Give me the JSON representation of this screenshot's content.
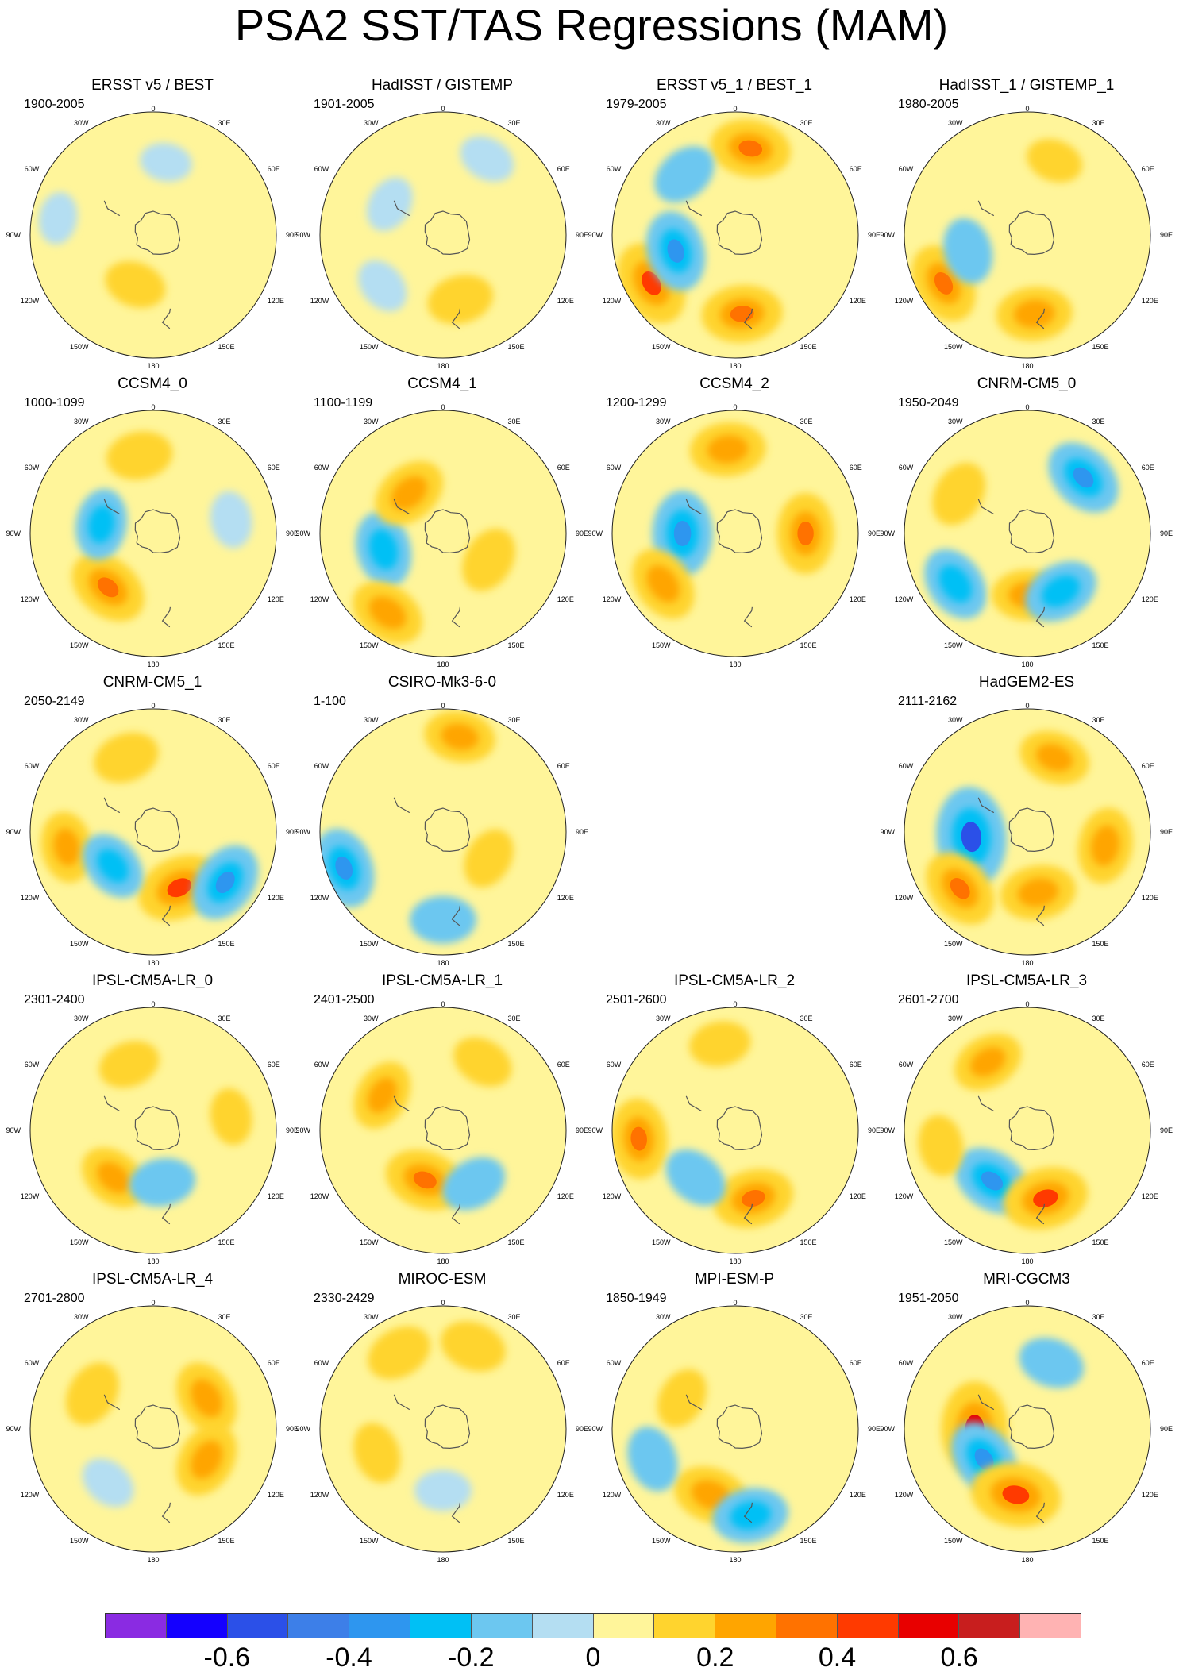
{
  "title": "PSA2 SST/TAS Regressions (MAM)",
  "lon_labels": [
    "0",
    "30E",
    "60E",
    "90E",
    "120E",
    "150E",
    "180",
    "150W",
    "120W",
    "90W",
    "60W",
    "30W"
  ],
  "colorbar": {
    "colors": [
      "#8a2be2",
      "#1400ff",
      "#2b50e8",
      "#3d7fe8",
      "#2e96ef",
      "#00c0f5",
      "#6cc7f0",
      "#b4def2",
      "#fff59a",
      "#ffd42e",
      "#ffa500",
      "#ff7200",
      "#ff3a00",
      "#e80000",
      "#c81e1e",
      "#ffb3b3"
    ],
    "tick_labels": [
      "-0.6",
      "-0.4",
      "-0.2",
      "0",
      "0.2",
      "0.4",
      "0.6"
    ],
    "tick_values": [
      -0.6,
      -0.4,
      -0.2,
      0,
      0.2,
      0.4,
      0.6
    ],
    "range": [
      -0.8,
      0.8
    ]
  },
  "panels": [
    {
      "id": "ersst-best",
      "title": "ERSST v5 / BEST",
      "period": "1900-2005",
      "anomalies": [
        {
          "lon": 200,
          "lat": -60,
          "value": 0.15
        },
        {
          "lon": 10,
          "lat": -48,
          "value": -0.05
        },
        {
          "lon": 280,
          "lat": -35,
          "value": -0.05
        }
      ]
    },
    {
      "id": "hadisst-gistemp",
      "title": "HadISST / GISTEMP",
      "period": "1901-2005",
      "anomalies": [
        {
          "lon": 300,
          "lat": -55,
          "value": -0.1
        },
        {
          "lon": 165,
          "lat": -52,
          "value": 0.2
        },
        {
          "lon": 230,
          "lat": -45,
          "value": -0.1
        },
        {
          "lon": 30,
          "lat": -40,
          "value": -0.1
        }
      ]
    },
    {
      "id": "ersst-best-1",
      "title": "ERSST v5_1 / BEST_1",
      "period": "1979-2005",
      "anomalies": [
        {
          "lon": 10,
          "lat": -40,
          "value": 0.35
        },
        {
          "lon": 240,
          "lat": -35,
          "value": 0.4
        },
        {
          "lon": 255,
          "lat": -55,
          "value": -0.35
        },
        {
          "lon": 175,
          "lat": -45,
          "value": 0.35
        },
        {
          "lon": 320,
          "lat": -45,
          "value": -0.2
        }
      ]
    },
    {
      "id": "hadisst-gistemp-1",
      "title": "HadISST_1 / GISTEMP_1",
      "period": "1980-2005",
      "anomalies": [
        {
          "lon": 240,
          "lat": -35,
          "value": 0.35
        },
        {
          "lon": 175,
          "lat": -45,
          "value": 0.3
        },
        {
          "lon": 255,
          "lat": -55,
          "value": -0.2
        },
        {
          "lon": 20,
          "lat": -45,
          "value": 0.1
        }
      ]
    },
    {
      "id": "ccsm4-0",
      "title": "CCSM4_0",
      "period": "1000-1099",
      "anomalies": [
        {
          "lon": 220,
          "lat": -50,
          "value": 0.35
        },
        {
          "lon": 350,
          "lat": -45,
          "value": 0.2
        },
        {
          "lon": 280,
          "lat": -60,
          "value": -0.25
        },
        {
          "lon": 80,
          "lat": -45,
          "value": -0.1
        }
      ]
    },
    {
      "id": "ccsm4-1",
      "title": "CCSM4_1",
      "period": "1100-1199",
      "anomalies": [
        {
          "lon": 255,
          "lat": -55,
          "value": -0.3
        },
        {
          "lon": 215,
          "lat": -35,
          "value": 0.3
        },
        {
          "lon": 320,
          "lat": -60,
          "value": 0.3
        },
        {
          "lon": 120,
          "lat": -60,
          "value": 0.2
        }
      ]
    },
    {
      "id": "ccsm4-2",
      "title": "CCSM4_2",
      "period": "1200-1299",
      "anomalies": [
        {
          "lon": 270,
          "lat": -60,
          "value": -0.4
        },
        {
          "lon": 235,
          "lat": -40,
          "value": 0.3
        },
        {
          "lon": 355,
          "lat": -42,
          "value": 0.3
        },
        {
          "lon": 90,
          "lat": -50,
          "value": 0.35
        }
      ]
    },
    {
      "id": "cnrm-cm5-0",
      "title": "CNRM-CM5_0",
      "period": "1950-2049",
      "anomalies": [
        {
          "lon": 45,
          "lat": -45,
          "value": -0.35
        },
        {
          "lon": 235,
          "lat": -40,
          "value": -0.3
        },
        {
          "lon": 180,
          "lat": -55,
          "value": 0.25
        },
        {
          "lon": 150,
          "lat": -52,
          "value": -0.3
        },
        {
          "lon": 300,
          "lat": -45,
          "value": 0.2
        }
      ]
    },
    {
      "id": "cnrm-cm5-1",
      "title": "CNRM-CM5_1",
      "period": "2050-2149",
      "anomalies": [
        {
          "lon": 155,
          "lat": -55,
          "value": 0.4
        },
        {
          "lon": 125,
          "lat": -40,
          "value": -0.35
        },
        {
          "lon": 260,
          "lat": -40,
          "value": 0.25
        },
        {
          "lon": 230,
          "lat": -60,
          "value": -0.25
        },
        {
          "lon": 340,
          "lat": -45,
          "value": 0.2
        }
      ]
    },
    {
      "id": "csiro-mk3-6-0",
      "title": "CSIRO-Mk3-6-0",
      "period": "1-100",
      "anomalies": [
        {
          "lon": 250,
          "lat": -30,
          "value": -0.35
        },
        {
          "lon": 10,
          "lat": -35,
          "value": 0.25
        },
        {
          "lon": 180,
          "lat": -40,
          "value": -0.2
        },
        {
          "lon": 120,
          "lat": -60,
          "value": 0.15
        }
      ]
    },
    {
      "id": "hadgem2-es",
      "title": "HadGEM2-ES",
      "period": "2111-2162",
      "anomalies": [
        {
          "lon": 265,
          "lat": -58,
          "value": -0.55
        },
        {
          "lon": 230,
          "lat": -40,
          "value": 0.35
        },
        {
          "lon": 100,
          "lat": -45,
          "value": 0.3
        },
        {
          "lon": 20,
          "lat": -45,
          "value": 0.25
        },
        {
          "lon": 170,
          "lat": -55,
          "value": 0.3
        }
      ]
    },
    {
      "id": "ipsl-cm5a-lr-0",
      "title": "IPSL-CM5A-LR_0",
      "period": "2301-2400",
      "anomalies": [
        {
          "lon": 220,
          "lat": -55,
          "value": 0.25
        },
        {
          "lon": 170,
          "lat": -60,
          "value": -0.2
        },
        {
          "lon": 340,
          "lat": -50,
          "value": 0.15
        },
        {
          "lon": 80,
          "lat": -45,
          "value": 0.1
        }
      ]
    },
    {
      "id": "ipsl-cm5a-lr-1",
      "title": "IPSL-CM5A-LR_1",
      "period": "2401-2500",
      "anomalies": [
        {
          "lon": 200,
          "lat": -60,
          "value": 0.35
        },
        {
          "lon": 300,
          "lat": -50,
          "value": 0.25
        },
        {
          "lon": 150,
          "lat": -55,
          "value": -0.2
        },
        {
          "lon": 30,
          "lat": -45,
          "value": 0.15
        }
      ]
    },
    {
      "id": "ipsl-cm5a-lr-2",
      "title": "IPSL-CM5A-LR_2",
      "period": "2501-2600",
      "anomalies": [
        {
          "lon": 265,
          "lat": -35,
          "value": 0.35
        },
        {
          "lon": 165,
          "lat": -50,
          "value": 0.35
        },
        {
          "lon": 220,
          "lat": -55,
          "value": -0.2
        },
        {
          "lon": 350,
          "lat": -40,
          "value": 0.15
        }
      ]
    },
    {
      "id": "ipsl-cm5a-lr-3",
      "title": "IPSL-CM5A-LR_3",
      "period": "2601-2700",
      "anomalies": [
        {
          "lon": 215,
          "lat": -55,
          "value": -0.35
        },
        {
          "lon": 165,
          "lat": -50,
          "value": 0.4
        },
        {
          "lon": 330,
          "lat": -45,
          "value": 0.25
        },
        {
          "lon": 260,
          "lat": -40,
          "value": 0.15
        }
      ]
    },
    {
      "id": "ipsl-cm5a-lr-4",
      "title": "IPSL-CM5A-LR_4",
      "period": "2701-2800",
      "anomalies": [
        {
          "lon": 60,
          "lat": -55,
          "value": 0.3
        },
        {
          "lon": 120,
          "lat": -55,
          "value": 0.3
        },
        {
          "lon": 300,
          "lat": -50,
          "value": 0.2
        },
        {
          "lon": 220,
          "lat": -50,
          "value": -0.1
        }
      ]
    },
    {
      "id": "miroc-esm",
      "title": "MIROC-ESM",
      "period": "2330-2429",
      "anomalies": [
        {
          "lon": 330,
          "lat": -40,
          "value": 0.2
        },
        {
          "lon": 20,
          "lat": -40,
          "value": 0.2
        },
        {
          "lon": 180,
          "lat": -55,
          "value": -0.1
        },
        {
          "lon": 250,
          "lat": -50,
          "value": 0.15
        }
      ]
    },
    {
      "id": "mpi-esm-p",
      "title": "MPI-ESM-P",
      "period": "1850-1949",
      "anomalies": [
        {
          "lon": 200,
          "lat": -50,
          "value": 0.3
        },
        {
          "lon": 170,
          "lat": -40,
          "value": -0.3
        },
        {
          "lon": 250,
          "lat": -40,
          "value": -0.2
        },
        {
          "lon": 300,
          "lat": -55,
          "value": 0.15
        }
      ]
    },
    {
      "id": "mri-cgcm3",
      "title": "MRI-CGCM3",
      "period": "1951-2050",
      "anomalies": [
        {
          "lon": 270,
          "lat": -60,
          "value": 0.5
        },
        {
          "lon": 235,
          "lat": -60,
          "value": -0.35
        },
        {
          "lon": 190,
          "lat": -52,
          "value": 0.45
        },
        {
          "lon": 20,
          "lat": -50,
          "value": -0.2
        }
      ]
    }
  ]
}
